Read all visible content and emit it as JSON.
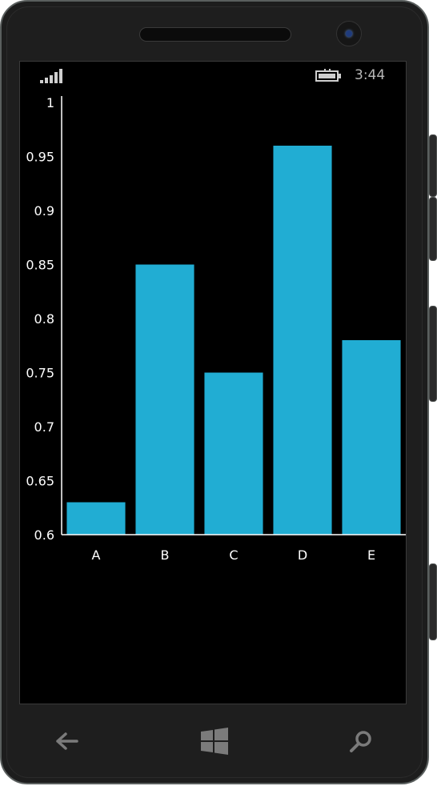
{
  "status_bar": {
    "time": "3:44",
    "signal_icon": "signal-bars-icon",
    "battery_icon": "battery-charging-icon"
  },
  "navbar": {
    "back_icon": "back-arrow-icon",
    "start_icon": "windows-logo-icon",
    "search_icon": "search-icon"
  },
  "colors": {
    "bar": "#21add3",
    "axis": "#ffffff",
    "background": "#000000"
  },
  "chart_data": {
    "type": "bar",
    "categories": [
      "A",
      "B",
      "C",
      "D",
      "E"
    ],
    "values": [
      0.63,
      0.85,
      0.75,
      0.96,
      0.78
    ],
    "title": "",
    "xlabel": "",
    "ylabel": "",
    "ylim": [
      0.6,
      1
    ],
    "yticks": [
      "1",
      "0.95",
      "0.9",
      "0.85",
      "0.8",
      "0.75",
      "0.7",
      "0.65",
      "0.6"
    ],
    "grid": false,
    "legend": "none"
  }
}
